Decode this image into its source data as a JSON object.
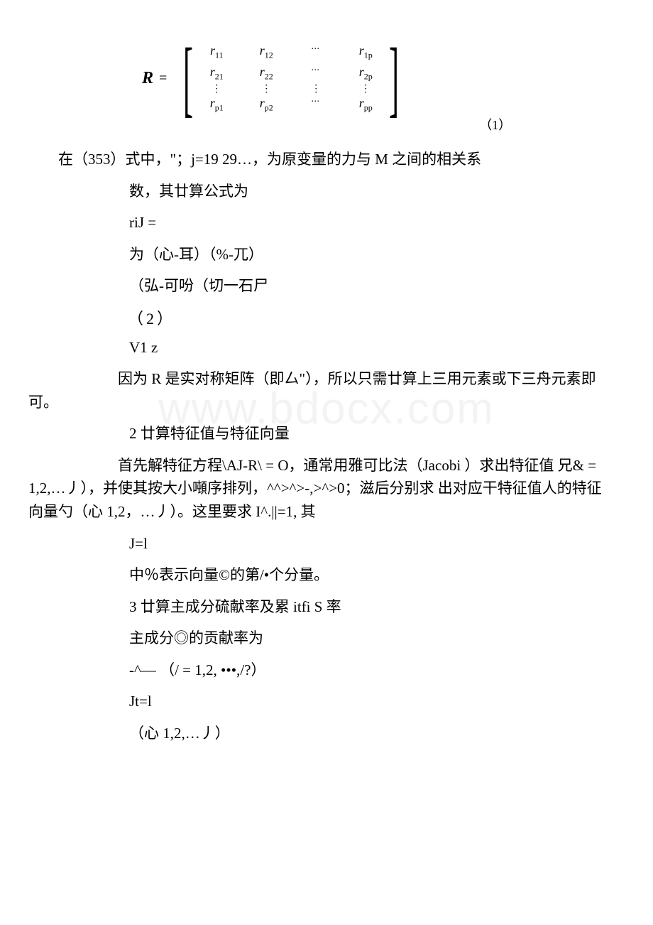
{
  "matrix": {
    "symbol": "R",
    "rows": [
      [
        "r_11",
        "r_12",
        "⋯",
        "r_1p"
      ],
      [
        "r_21",
        "r_22",
        "⋯",
        "r_2p"
      ],
      [
        "vdots",
        "vdots",
        "vdots",
        "vdots"
      ],
      [
        "r_p1",
        "r_p2",
        "⋯",
        "r_pp"
      ]
    ],
    "eqnum": "（1）"
  },
  "para1a": "在（353）式中，\"；j=19 29…，为原变量的力与 M 之间的相关系",
  "para1b": "数，其廿算公式为",
  "line_rij": "riJ =",
  "line_f1": "为（心-耳）（%-兀）",
  "line_f2": "（弘-可吩（切一石尸",
  "eq2": "（2）",
  "line_v1z": "V1 z",
  "para2": "因为 R 是实对称矩阵（即厶\"），所以只需廿算上三用元素或下三舟元素即可。",
  "heading2": "2 廿算特征值与特征向量",
  "para3": "首先解特征方程\\AJ-R\\ = O，通常用雅可比法（Jacobi ）求出特征值 兄& = 1,2,…丿），并使其按大小噸序排列，^^>^>-,>^>0；滋后分别求 出对应干特征值人的特征向量勺（心 1,2，…丿）。这里要求 I^.||=1, 其",
  "line_jl": "J=l",
  "para4": "中％表示向量©的第/•个分量。",
  "heading3": "3 廿算主成分硫献率及累 itfi S 率",
  "para5": "主成分◎的贡献率为",
  "line_contrib": "-^— （/ = 1,2, •••,/?）",
  "line_jtl": "Jt=l",
  "line_last": "（心 1,2,…丿）",
  "watermark_text": "www.bdocx.com",
  "r11": "r",
  "r11s": "11",
  "r12": "r",
  "r12s": "12",
  "r1p": "r",
  "r1ps": "1p",
  "r21": "r",
  "r21s": "21",
  "r22": "r",
  "r22s": "22",
  "r2p": "r",
  "r2ps": "2p",
  "rp1": "r",
  "rp1s": "p1",
  "rp2": "r",
  "rp2s": "p2",
  "rpp": "r",
  "rpps": "pp",
  "cdots": "⋯",
  "vdot": "⋮"
}
